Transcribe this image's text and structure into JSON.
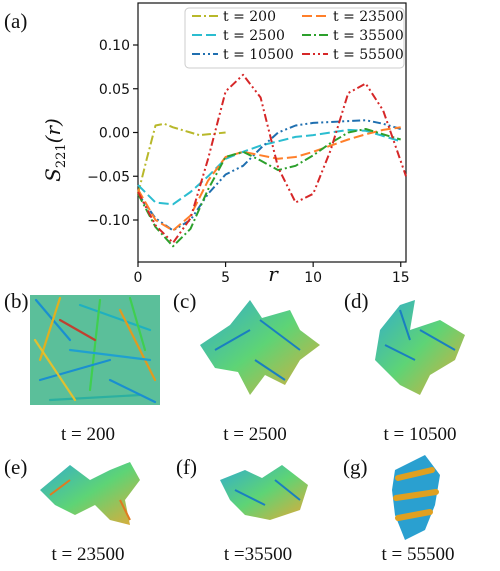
{
  "chart_data": {
    "type": "line",
    "panel_label": "(a)",
    "xlabel": "r",
    "ylabel": "S221(r)",
    "xlim": [
      0,
      15.3
    ],
    "ylim": [
      -0.148,
      0.148
    ],
    "xticks": [
      0,
      5,
      10,
      15
    ],
    "yticks": [
      0.1,
      0.05,
      0.0,
      -0.05,
      -0.1
    ],
    "ytick_labels": [
      "0.10",
      "0.05",
      "0.00",
      "−0.05",
      "−0.10"
    ],
    "legend_position": "top-right",
    "grid": false,
    "series": [
      {
        "name": "t = 200",
        "color": "#b8b82a",
        "dash": "dashdot",
        "x": [
          0,
          0.5,
          1,
          1.5,
          2,
          2.5,
          3,
          3.5,
          4,
          4.5,
          5
        ],
        "y": [
          -0.07,
          -0.03,
          0.008,
          0.01,
          0.006,
          0.003,
          0.0,
          -0.003,
          -0.002,
          -0.001,
          0.0
        ]
      },
      {
        "name": "t = 2500",
        "color": "#2bbdd0",
        "dash": "longdash",
        "x": [
          0,
          1,
          2,
          3,
          4,
          5,
          6,
          7,
          8,
          9,
          10,
          11,
          12,
          13,
          14,
          15
        ],
        "y": [
          -0.06,
          -0.08,
          -0.082,
          -0.068,
          -0.05,
          -0.03,
          -0.022,
          -0.015,
          -0.01,
          -0.005,
          -0.003,
          0.0,
          0.003,
          0.002,
          -0.004,
          -0.01
        ]
      },
      {
        "name": "t = 10500",
        "color": "#1f6fb0",
        "dash": "dashdotdot",
        "x": [
          0,
          1,
          2,
          3,
          4,
          5,
          6,
          7,
          8,
          9,
          10,
          11,
          12,
          13,
          14,
          15
        ],
        "y": [
          -0.07,
          -0.098,
          -0.112,
          -0.1,
          -0.07,
          -0.048,
          -0.038,
          -0.018,
          0.0,
          0.008,
          0.011,
          0.012,
          0.013,
          0.014,
          0.01,
          0.004
        ]
      },
      {
        "name": "t = 23500",
        "color": "#ff7f2a",
        "dash": "longdash",
        "x": [
          0,
          1,
          2,
          3,
          4,
          5,
          6,
          7,
          8,
          9,
          10,
          11,
          12,
          13,
          14,
          15
        ],
        "y": [
          -0.065,
          -0.1,
          -0.112,
          -0.095,
          -0.055,
          -0.028,
          -0.022,
          -0.026,
          -0.03,
          -0.028,
          -0.022,
          -0.015,
          -0.008,
          -0.002,
          0.003,
          0.006
        ]
      },
      {
        "name": "t = 35500",
        "color": "#2ca02c",
        "dash": "dashdot",
        "x": [
          0,
          1,
          2,
          3,
          4,
          5,
          6,
          7,
          8,
          9,
          10,
          11,
          12,
          13,
          14,
          15
        ],
        "y": [
          -0.07,
          -0.108,
          -0.13,
          -0.11,
          -0.065,
          -0.028,
          -0.022,
          -0.032,
          -0.043,
          -0.038,
          -0.026,
          -0.012,
          0.0,
          0.004,
          -0.002,
          -0.008
        ]
      },
      {
        "name": "t = 55500",
        "color": "#d62728",
        "dash": "dashdotdot",
        "x": [
          0,
          1,
          2,
          3,
          4,
          5,
          6,
          7,
          8,
          9,
          10,
          11,
          12,
          13,
          14,
          15.3
        ],
        "y": [
          -0.068,
          -0.106,
          -0.126,
          -0.098,
          -0.03,
          0.047,
          0.066,
          0.04,
          -0.04,
          -0.08,
          -0.07,
          -0.02,
          0.045,
          0.056,
          0.025,
          -0.05
        ]
      }
    ]
  },
  "panels": [
    {
      "label": "(b)",
      "caption": "t = 200"
    },
    {
      "label": "(c)",
      "caption": "t = 2500"
    },
    {
      "label": "(d)",
      "caption": "t = 10500"
    },
    {
      "label": "(e)",
      "caption": "t = 23500"
    },
    {
      "label": "(f)",
      "caption": "t =35500"
    },
    {
      "label": "(g)",
      "caption": "t = 55500"
    }
  ]
}
